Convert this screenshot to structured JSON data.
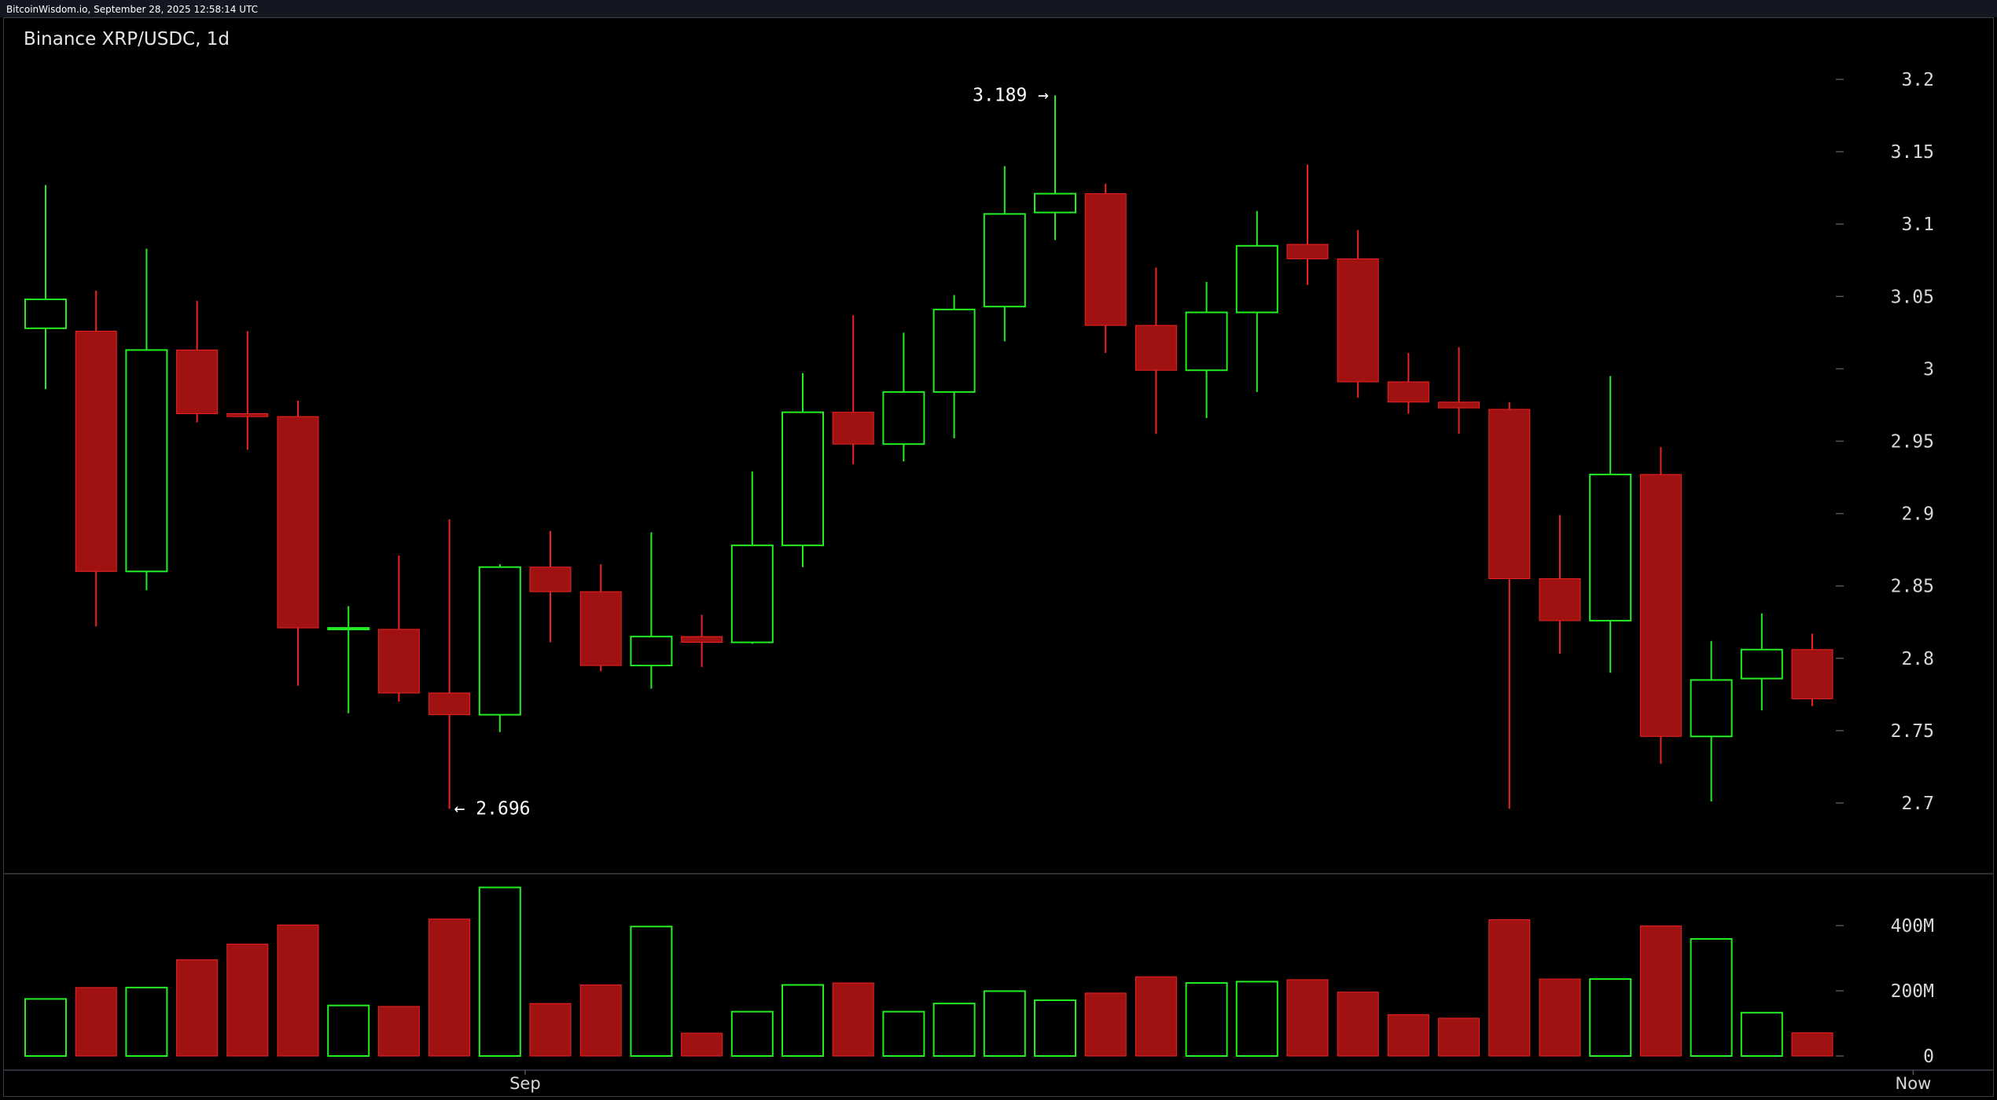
{
  "top_bar": {
    "text": "BitcoinWisdom.io, September 28, 2025 12:58:14 UTC"
  },
  "chart_data": {
    "type": "candlestick",
    "title": "Binance XRP/USDC, 1d",
    "price_axis": {
      "ticks": [
        "3.2",
        "3.15",
        "3.1",
        "3.05",
        "3",
        "2.95",
        "2.9",
        "2.85",
        "2.8",
        "2.75",
        "2.7"
      ],
      "range": [
        2.66,
        3.22
      ]
    },
    "volume_axis": {
      "ticks": [
        "400M",
        "200M",
        "0"
      ],
      "range": [
        0,
        520
      ]
    },
    "x_ticks": [
      {
        "label": "Sep",
        "index": 9.5
      },
      {
        "label": "Now",
        "index": 37
      }
    ],
    "annotations": [
      {
        "label": "3.189 →",
        "index": 20,
        "value": 3.189,
        "side": "left"
      },
      {
        "label": "← 2.696",
        "index": 8,
        "value": 2.696,
        "side": "right"
      }
    ],
    "candles": [
      {
        "o": 3.028,
        "h": 3.127,
        "l": 2.986,
        "c": 3.048,
        "v": 175
      },
      {
        "o": 3.026,
        "h": 3.054,
        "l": 2.822,
        "c": 2.86,
        "v": 210
      },
      {
        "o": 2.86,
        "h": 3.083,
        "l": 2.847,
        "c": 3.013,
        "v": 210
      },
      {
        "o": 3.013,
        "h": 3.047,
        "l": 2.963,
        "c": 2.969,
        "v": 295
      },
      {
        "o": 2.969,
        "h": 3.026,
        "l": 2.944,
        "c": 2.967,
        "v": 343
      },
      {
        "o": 2.967,
        "h": 2.978,
        "l": 2.781,
        "c": 2.821,
        "v": 402
      },
      {
        "o": 2.821,
        "h": 2.836,
        "l": 2.762,
        "c": 2.821,
        "v": 155
      },
      {
        "o": 2.82,
        "h": 2.871,
        "l": 2.77,
        "c": 2.776,
        "v": 152
      },
      {
        "o": 2.776,
        "h": 2.896,
        "l": 2.696,
        "c": 2.761,
        "v": 420
      },
      {
        "o": 2.761,
        "h": 2.865,
        "l": 2.749,
        "c": 2.863,
        "v": 517
      },
      {
        "o": 2.863,
        "h": 2.888,
        "l": 2.811,
        "c": 2.846,
        "v": 161
      },
      {
        "o": 2.846,
        "h": 2.865,
        "l": 2.791,
        "c": 2.795,
        "v": 218
      },
      {
        "o": 2.795,
        "h": 2.887,
        "l": 2.779,
        "c": 2.815,
        "v": 397
      },
      {
        "o": 2.815,
        "h": 2.83,
        "l": 2.794,
        "c": 2.811,
        "v": 70
      },
      {
        "o": 2.811,
        "h": 2.929,
        "l": 2.81,
        "c": 2.878,
        "v": 136
      },
      {
        "o": 2.878,
        "h": 2.997,
        "l": 2.863,
        "c": 2.97,
        "v": 218
      },
      {
        "o": 2.97,
        "h": 3.037,
        "l": 2.934,
        "c": 2.948,
        "v": 224
      },
      {
        "o": 2.948,
        "h": 3.025,
        "l": 2.936,
        "c": 2.984,
        "v": 136
      },
      {
        "o": 2.984,
        "h": 3.051,
        "l": 2.952,
        "c": 3.041,
        "v": 161
      },
      {
        "o": 3.043,
        "h": 3.14,
        "l": 3.019,
        "c": 3.107,
        "v": 199
      },
      {
        "o": 3.108,
        "h": 3.189,
        "l": 3.089,
        "c": 3.121,
        "v": 171
      },
      {
        "o": 3.121,
        "h": 3.128,
        "l": 3.011,
        "c": 3.03,
        "v": 193
      },
      {
        "o": 3.03,
        "h": 3.07,
        "l": 2.955,
        "c": 2.999,
        "v": 243
      },
      {
        "o": 2.999,
        "h": 3.06,
        "l": 2.966,
        "c": 3.039,
        "v": 224
      },
      {
        "o": 3.039,
        "h": 3.109,
        "l": 2.984,
        "c": 3.085,
        "v": 228
      },
      {
        "o": 3.086,
        "h": 3.141,
        "l": 3.058,
        "c": 3.076,
        "v": 234
      },
      {
        "o": 3.076,
        "h": 3.096,
        "l": 2.98,
        "c": 2.991,
        "v": 196
      },
      {
        "o": 2.991,
        "h": 3.011,
        "l": 2.969,
        "c": 2.977,
        "v": 127
      },
      {
        "o": 2.977,
        "h": 3.015,
        "l": 2.955,
        "c": 2.973,
        "v": 116
      },
      {
        "o": 2.972,
        "h": 2.977,
        "l": 2.696,
        "c": 2.855,
        "v": 418
      },
      {
        "o": 2.855,
        "h": 2.899,
        "l": 2.803,
        "c": 2.826,
        "v": 236
      },
      {
        "o": 2.826,
        "h": 2.995,
        "l": 2.79,
        "c": 2.927,
        "v": 236
      },
      {
        "o": 2.927,
        "h": 2.946,
        "l": 2.727,
        "c": 2.746,
        "v": 399
      },
      {
        "o": 2.746,
        "h": 2.812,
        "l": 2.701,
        "c": 2.785,
        "v": 359
      },
      {
        "o": 2.786,
        "h": 2.831,
        "l": 2.764,
        "c": 2.806,
        "v": 133
      },
      {
        "o": 2.806,
        "h": 2.817,
        "l": 2.767,
        "c": 2.772,
        "v": 71
      }
    ]
  },
  "colors": {
    "up": "#22ee22",
    "down": "#a01212",
    "down_wick": "#ee2222",
    "grid_tick": "#555555",
    "axis_text": "#d8d8d8"
  }
}
